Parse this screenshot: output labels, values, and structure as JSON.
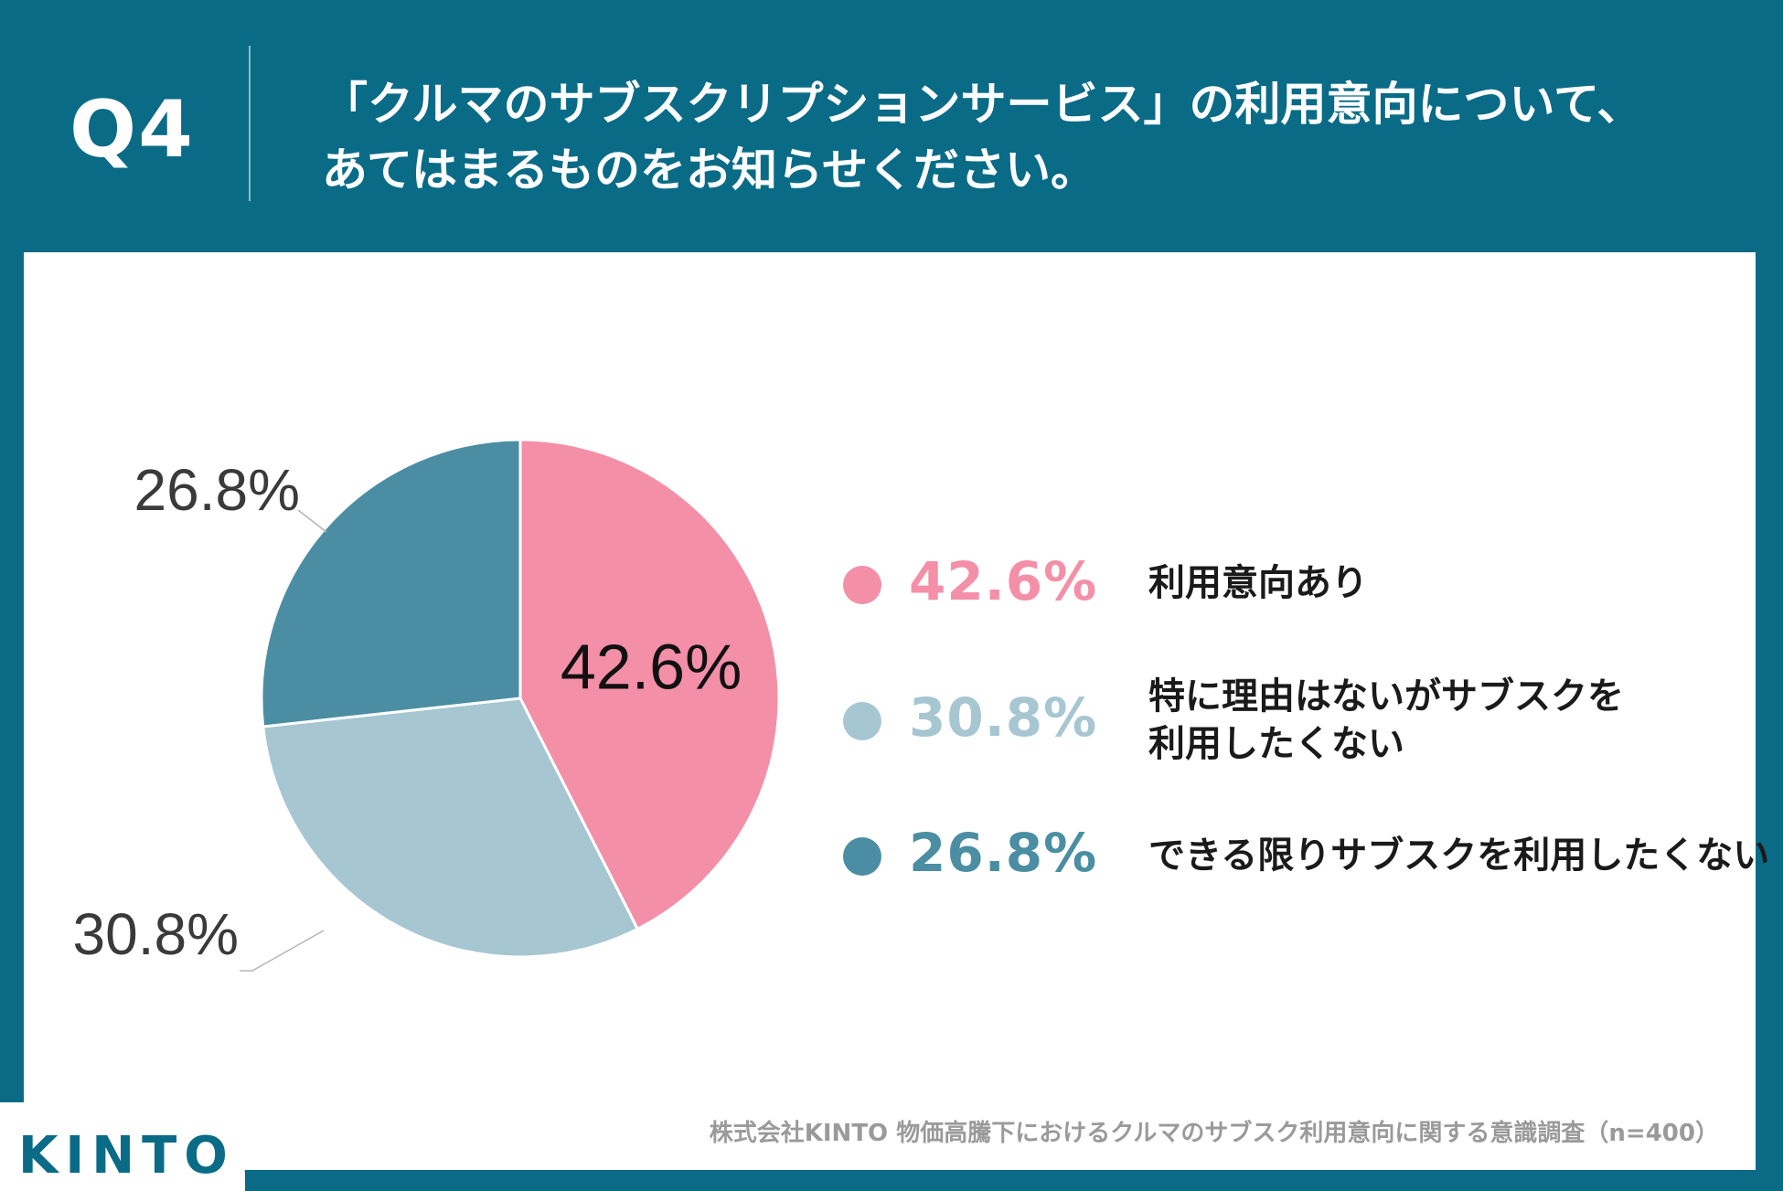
{
  "header": {
    "question": "Q4",
    "title_line1": "「クルマのサブスクリプションサービス」の利用意向について、",
    "title_line2": "あてはまるものをお知らせください。"
  },
  "chart_data": {
    "type": "pie",
    "slices": [
      {
        "label": "利用意向あり",
        "value": 42.6,
        "display": "42.6%",
        "color": "#f48fa8"
      },
      {
        "label": "特に理由はないがサブスクを\n利用したくない",
        "value": 30.8,
        "display": "30.8%",
        "color": "#a6c6d2"
      },
      {
        "label": "できる限りサブスクを利用したくない",
        "value": 26.8,
        "display": "26.8%",
        "color": "#4b8ea3"
      }
    ]
  },
  "legend": [
    {
      "pct": "42.6%",
      "label_lines": [
        "利用意向あり"
      ],
      "color": "#f48fa8"
    },
    {
      "pct": "30.8%",
      "label_lines": [
        "特に理由はないがサブスクを",
        "利用したくない"
      ],
      "color": "#a6c6d2"
    },
    {
      "pct": "26.8%",
      "label_lines": [
        "できる限りサブスクを利用したくない"
      ],
      "color": "#4b8ea3"
    }
  ],
  "footer": {
    "source": "株式会社KINTO 物価高騰下におけるクルマのサブスク利用意向に関する意識調査（n=400）",
    "logo": "KINTO"
  }
}
